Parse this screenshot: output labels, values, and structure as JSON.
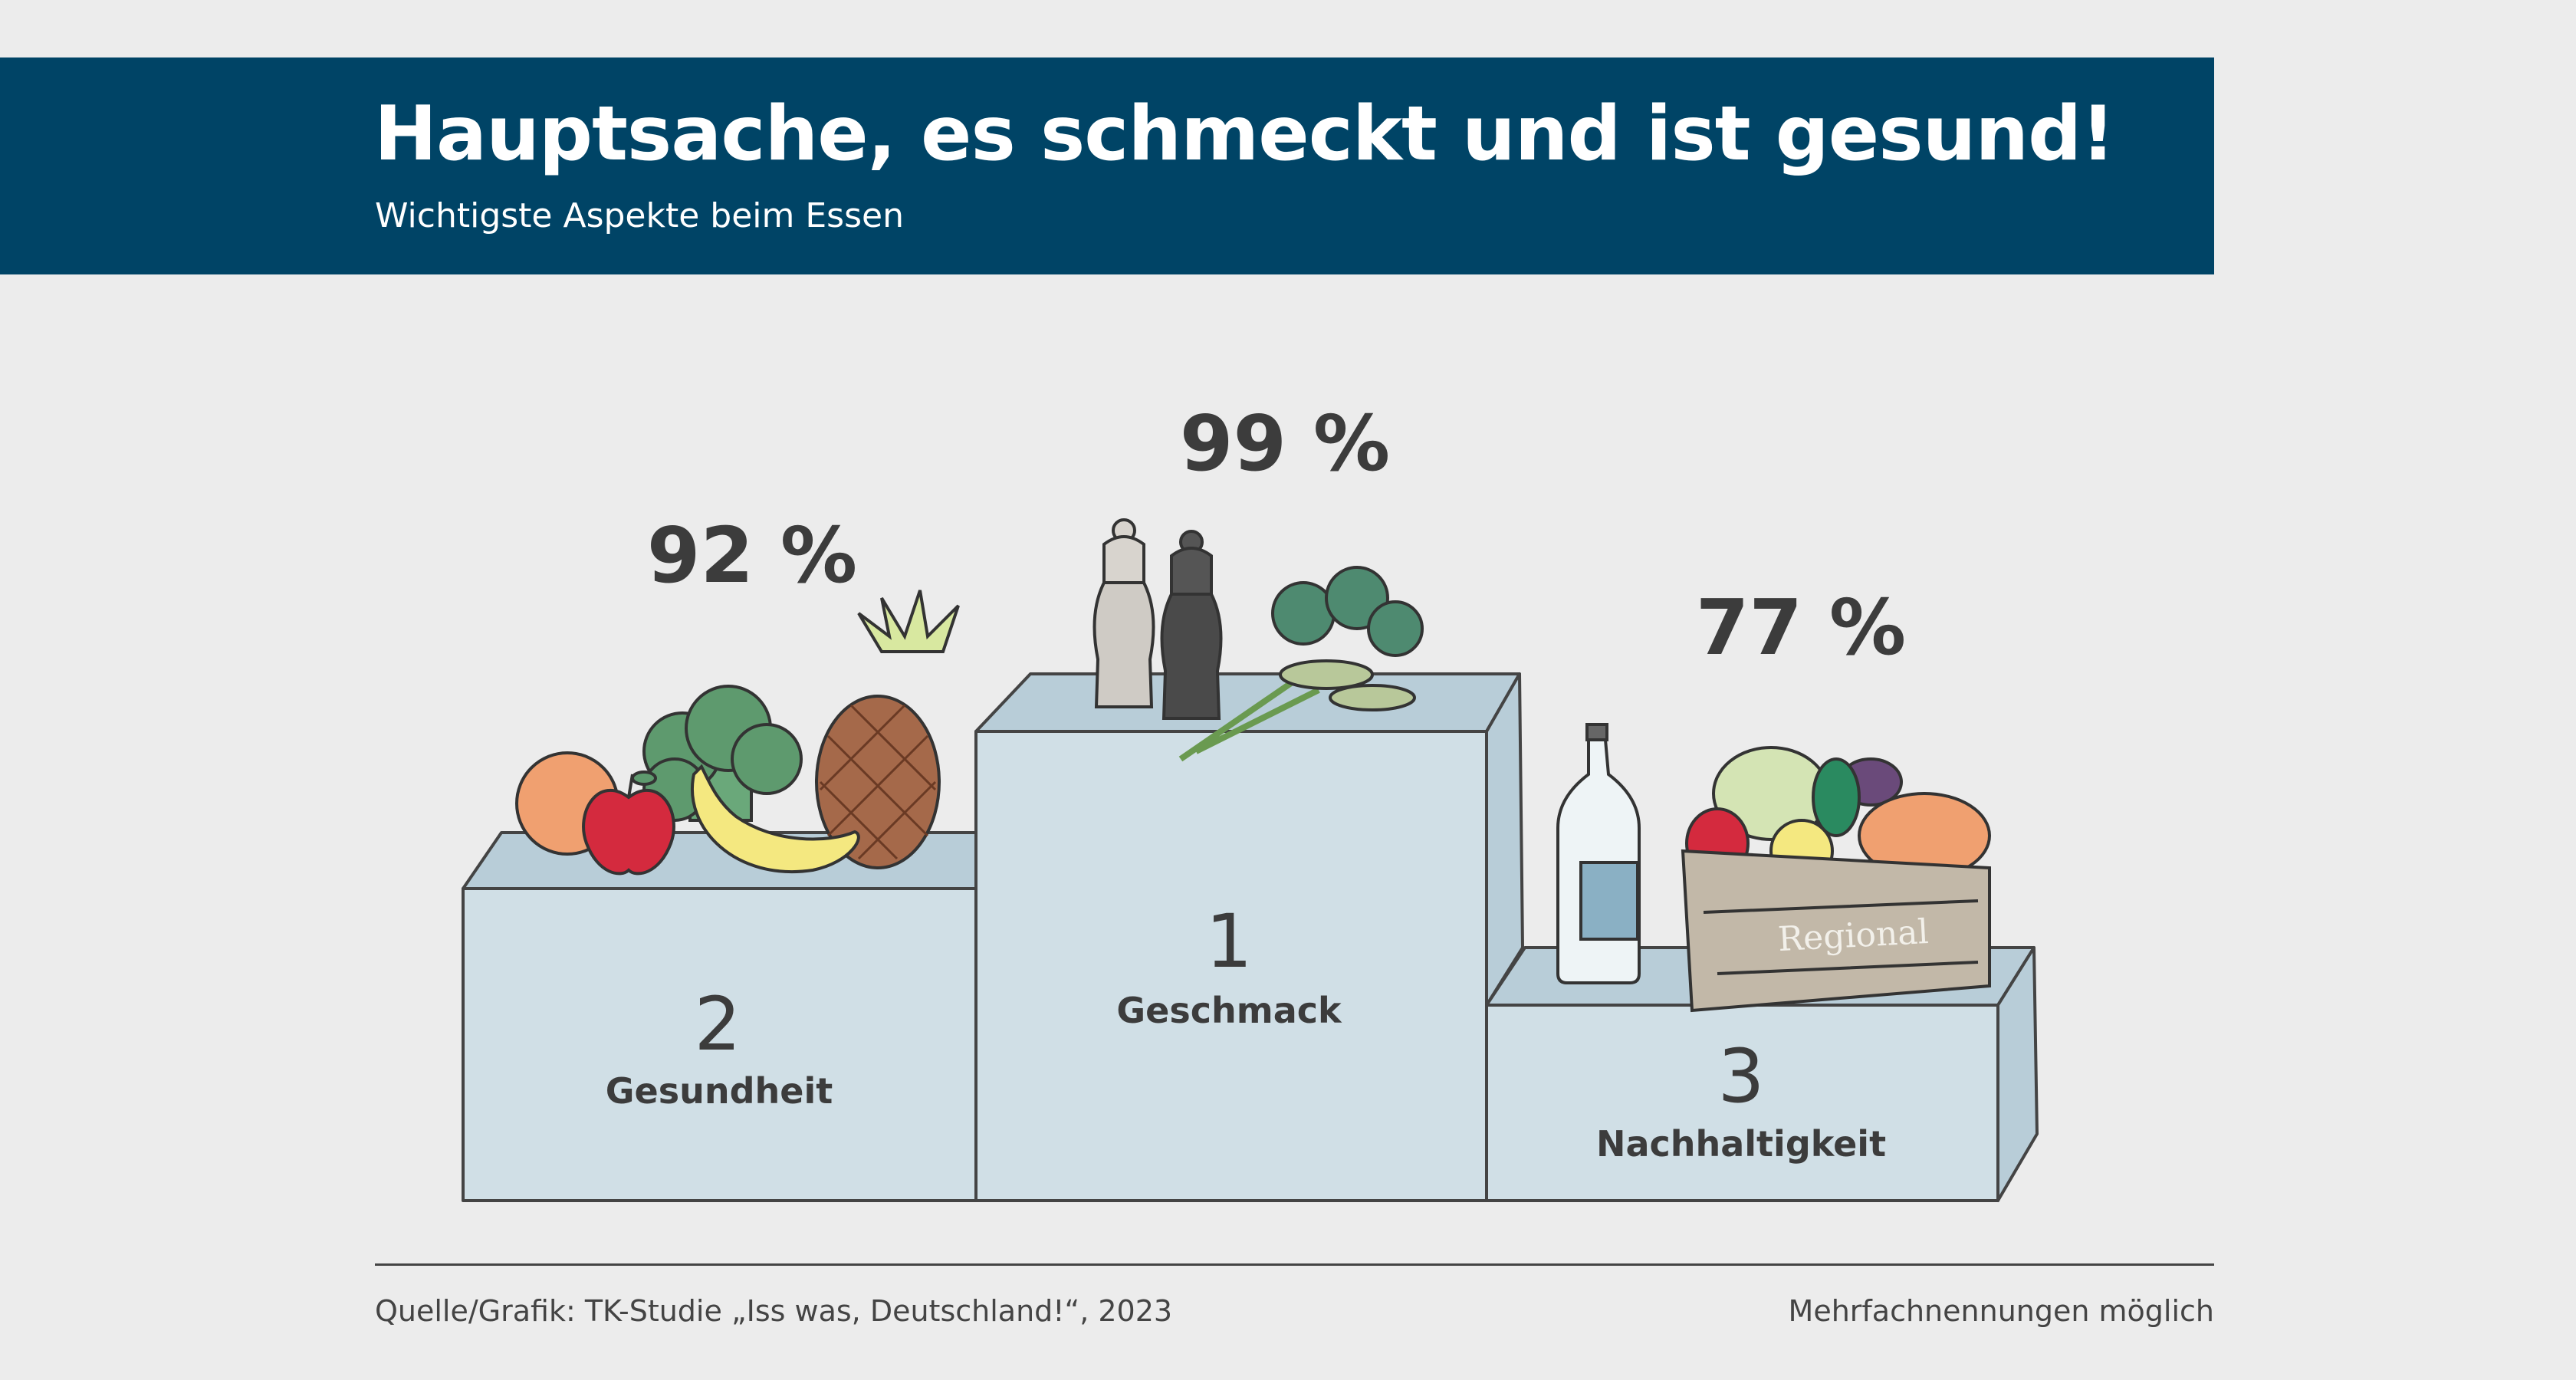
{
  "header": {
    "title": "Hauptsache, es schmeckt und ist gesund!",
    "subtitle": "Wichtigste Aspekte beim Essen"
  },
  "chart_data": {
    "type": "bar",
    "style": "podium",
    "title": "Hauptsache, es schmeckt und ist gesund!",
    "subtitle": "Wichtigste Aspekte beim Essen",
    "categories": [
      "Gesundheit",
      "Geschmack",
      "Nachhaltigkeit"
    ],
    "ranks": [
      "2",
      "1",
      "3"
    ],
    "values": [
      92,
      99,
      77
    ],
    "value_labels": [
      "92 %",
      "99 %",
      "77 %"
    ],
    "unit": "%",
    "crate_label": "Regional"
  },
  "footer": {
    "source": "Quelle/Grafik: TK-Studie „Iss was, Deutschland!“, 2023",
    "note": "Mehrfachnennungen möglich"
  },
  "colors": {
    "header_bg": "#004466",
    "podium_front": "#d0dfe6",
    "podium_top": "#b8cdd8",
    "background": "#ececec",
    "text": "#3c3c3c"
  }
}
